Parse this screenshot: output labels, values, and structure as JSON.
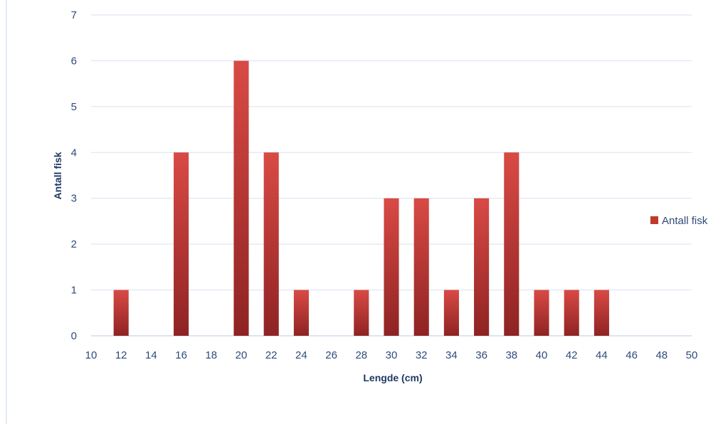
{
  "chart_data": {
    "type": "bar",
    "xlabel": "Lengde (cm)",
    "ylabel": "Antall fisk",
    "xlim": [
      10,
      50
    ],
    "ylim": [
      0,
      7
    ],
    "x_ticks": [
      "10",
      "12",
      "14",
      "16",
      "18",
      "20",
      "22",
      "24",
      "26",
      "28",
      "30",
      "32",
      "34",
      "36",
      "38",
      "40",
      "42",
      "44",
      "46",
      "48",
      "50"
    ],
    "y_ticks": [
      "0",
      "1",
      "2",
      "3",
      "4",
      "5",
      "6",
      "7"
    ],
    "grid": true,
    "legend_position": "right",
    "series": [
      {
        "name": "Antall fisk",
        "color": "#c0392b",
        "points": [
          {
            "x": 12,
            "y": 1
          },
          {
            "x": 16,
            "y": 4
          },
          {
            "x": 20,
            "y": 6
          },
          {
            "x": 22,
            "y": 4
          },
          {
            "x": 24,
            "y": 1
          },
          {
            "x": 28,
            "y": 1
          },
          {
            "x": 30,
            "y": 3
          },
          {
            "x": 32,
            "y": 3
          },
          {
            "x": 34,
            "y": 1
          },
          {
            "x": 36,
            "y": 3
          },
          {
            "x": 38,
            "y": 4
          },
          {
            "x": 40,
            "y": 1
          },
          {
            "x": 42,
            "y": 1
          },
          {
            "x": 44,
            "y": 1
          }
        ]
      }
    ]
  },
  "legend": {
    "label": "Antall fisk"
  }
}
